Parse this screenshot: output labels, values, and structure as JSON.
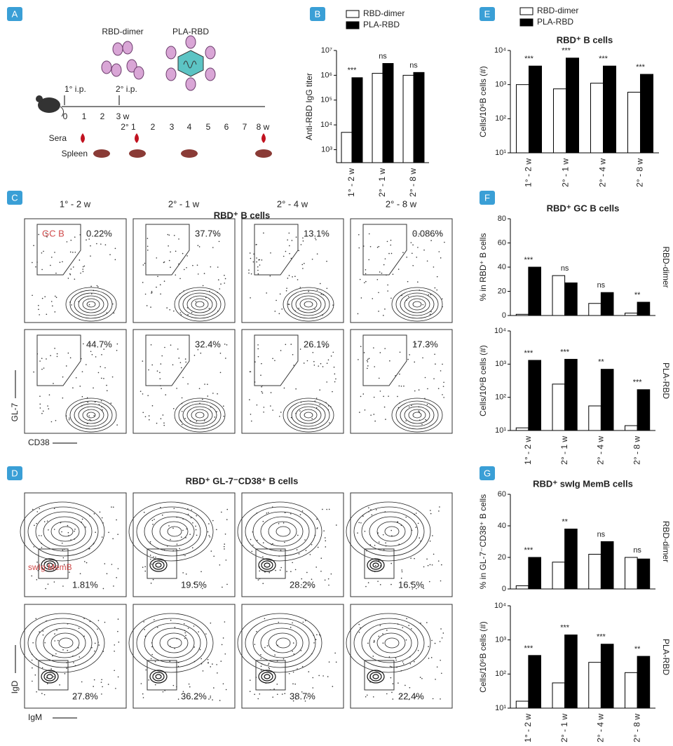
{
  "panel_labels": [
    "A",
    "B",
    "C",
    "D",
    "E",
    "F",
    "G"
  ],
  "schematic": {
    "labels": {
      "rbd_dimer": "RBD-dimer",
      "pla_rbd": "PLA-RBD",
      "first_ip": "1° i.p.",
      "second_ip": "2° i.p."
    },
    "timeline_primary": [
      "0",
      "1",
      "2",
      "3 w"
    ],
    "timeline_secondary": [
      "2° 1",
      "2",
      "3",
      "4",
      "5",
      "6",
      "7",
      "8 w"
    ],
    "rows": [
      "Sera",
      "Spleen"
    ]
  },
  "flow_c": {
    "title": "RBD⁺ B cells",
    "columns": [
      "1° - 2 w",
      "2° - 1 w",
      "2° - 4 w",
      "2° - 8 w"
    ],
    "gate": "GC B",
    "rows": [
      [
        "0.22%",
        "37.7%",
        "13.1%",
        "0.086%"
      ],
      [
        "44.7%",
        "32.4%",
        "26.1%",
        "17.3%"
      ]
    ],
    "y_axis": "GL-7",
    "x_axis": "CD38"
  },
  "flow_d": {
    "title": "RBD⁺ GL-7⁻CD38⁺ B cells",
    "gate": "swIg MemB",
    "rows": [
      [
        "1.81%",
        "19.5%",
        "28.2%",
        "16.5%"
      ],
      [
        "27.8%",
        "36.2%",
        "38.7%",
        "22.4%"
      ]
    ],
    "y_axis": "IgD",
    "x_axis": "IgM"
  },
  "chart_data": [
    {
      "type": "bar",
      "ylabel": "Anti-RBD IgG titer",
      "log_scale": true,
      "legend": "top",
      "ylim": [
        300,
        10000000
      ],
      "yticks": [
        {
          "value": 1000,
          "label": "10³"
        },
        {
          "value": 10000,
          "label": "10⁴"
        },
        {
          "value": 100000,
          "label": "10⁵"
        },
        {
          "value": 1000000,
          "label": "10⁶"
        },
        {
          "value": 10000000,
          "label": "10⁷"
        }
      ],
      "categories": [
        "1° - 2 w",
        "2° - 1 w",
        "2° - 8 w"
      ],
      "series": [
        {
          "name": "RBD-dimer",
          "color": "#ffffff",
          "values": [
            5000,
            1200000,
            1000000
          ]
        },
        {
          "name": "PLA-RBD",
          "color": "#000000",
          "values": [
            800000,
            3000000,
            1300000
          ]
        }
      ],
      "annotations": [
        "***",
        "ns",
        "ns"
      ]
    },
    {
      "type": "bar",
      "title": "RBD⁺ B cells",
      "ylabel": "Cells/10⁶B cells (#)",
      "log_scale": true,
      "legend": "top",
      "ylim": [
        10,
        10000
      ],
      "yticks": [
        {
          "value": 10,
          "label": "10¹"
        },
        {
          "value": 100,
          "label": "10²"
        },
        {
          "value": 1000,
          "label": "10³"
        },
        {
          "value": 10000,
          "label": "10⁴"
        }
      ],
      "categories": [
        "1° - 2 w",
        "2° - 1 w",
        "2° - 4 w",
        "2° - 8 w"
      ],
      "series": [
        {
          "name": "RBD-dimer",
          "color": "#ffffff",
          "values": [
            1000,
            750,
            1100,
            600
          ]
        },
        {
          "name": "PLA-RBD",
          "color": "#000000",
          "values": [
            3500,
            6000,
            3500,
            2000
          ]
        }
      ],
      "annotations": [
        "***",
        "***",
        "***",
        "***"
      ]
    },
    {
      "type": "bar",
      "title": "RBD⁺ GC B cells",
      "ylabel": "% in RBD⁺ B cells",
      "side_label": "RBD-dimer",
      "log_scale": false,
      "ylim": [
        0,
        80
      ],
      "yticks": [
        0,
        20,
        40,
        60,
        80
      ],
      "series": [
        {
          "color": "#ffffff",
          "values": [
            1,
            33,
            10,
            2
          ]
        },
        {
          "color": "#000000",
          "values": [
            40,
            27,
            19,
            11
          ]
        }
      ],
      "annotations": [
        "***",
        "ns",
        "ns",
        "**"
      ]
    },
    {
      "type": "bar",
      "ylabel": "Cells/10⁶B cells (#)",
      "side_label": "PLA-RBD",
      "log_scale": true,
      "ylim": [
        10,
        10000
      ],
      "yticks": [
        {
          "value": 10,
          "label": "10¹"
        },
        {
          "value": 100,
          "label": "10²"
        },
        {
          "value": 1000,
          "label": "10³"
        },
        {
          "value": 10000,
          "label": "10⁴"
        }
      ],
      "categories": [
        "1° - 2 w",
        "2° - 1 w",
        "2° - 4 w",
        "2° - 8 w"
      ],
      "series": [
        {
          "color": "#ffffff",
          "values": [
            12,
            250,
            55,
            14
          ]
        },
        {
          "color": "#000000",
          "values": [
            1300,
            1400,
            700,
            170
          ]
        }
      ],
      "annotations": [
        "***",
        "***",
        "**",
        "***"
      ]
    },
    {
      "type": "bar",
      "title": "RBD⁺ swIg MemB cells",
      "ylabel": "% in GL-7⁻CD38⁺ B cells",
      "side_label": "RBD-dimer",
      "log_scale": false,
      "ylim": [
        0,
        60
      ],
      "yticks": [
        0,
        20,
        40,
        60
      ],
      "series": [
        {
          "color": "#ffffff",
          "values": [
            2,
            17,
            22,
            20
          ]
        },
        {
          "color": "#000000",
          "values": [
            20,
            38,
            30,
            19
          ]
        }
      ],
      "annotations": [
        "***",
        "**",
        "ns",
        "ns"
      ]
    },
    {
      "type": "bar",
      "ylabel": "Cells/10⁶B cells (#)",
      "side_label": "PLA-RBD",
      "log_scale": true,
      "ylim": [
        10,
        10000
      ],
      "yticks": [
        {
          "value": 10,
          "label": "10¹"
        },
        {
          "value": 100,
          "label": "10²"
        },
        {
          "value": 1000,
          "label": "10³"
        },
        {
          "value": 10000,
          "label": "10⁴"
        }
      ],
      "categories": [
        "1° - 2 w",
        "2° - 1 w",
        "2° - 4 w",
        "2° - 8 w"
      ],
      "series": [
        {
          "color": "#ffffff",
          "values": [
            16,
            55,
            220,
            110
          ]
        },
        {
          "color": "#000000",
          "values": [
            350,
            1400,
            750,
            330
          ]
        }
      ],
      "annotations": [
        "***",
        "***",
        "***",
        "**"
      ]
    }
  ]
}
